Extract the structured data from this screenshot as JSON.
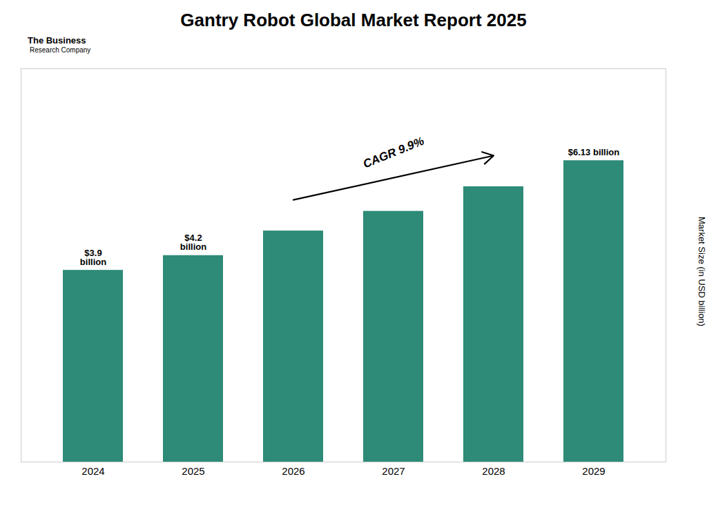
{
  "chart_data": {
    "type": "bar",
    "title": "Gantry Robot Global Market Report 2025",
    "categories": [
      "2024",
      "2025",
      "2026",
      "2027",
      "2028",
      "2029"
    ],
    "values": [
      3.9,
      4.2,
      4.7,
      5.1,
      5.6,
      6.13
    ],
    "value_labels": [
      "$3.9\nbillion",
      "$4.2\nbillion",
      null,
      null,
      null,
      "$6.13 billion"
    ],
    "color": "#2d8b77",
    "ylabel": "Market Size (in USD billion)",
    "ylim": [
      0,
      8.0
    ],
    "yticks": [],
    "tick_labels": "x",
    "grid": false,
    "annotations": [
      "CAGR 9.9%",
      "The Business",
      "Research Company"
    ]
  }
}
